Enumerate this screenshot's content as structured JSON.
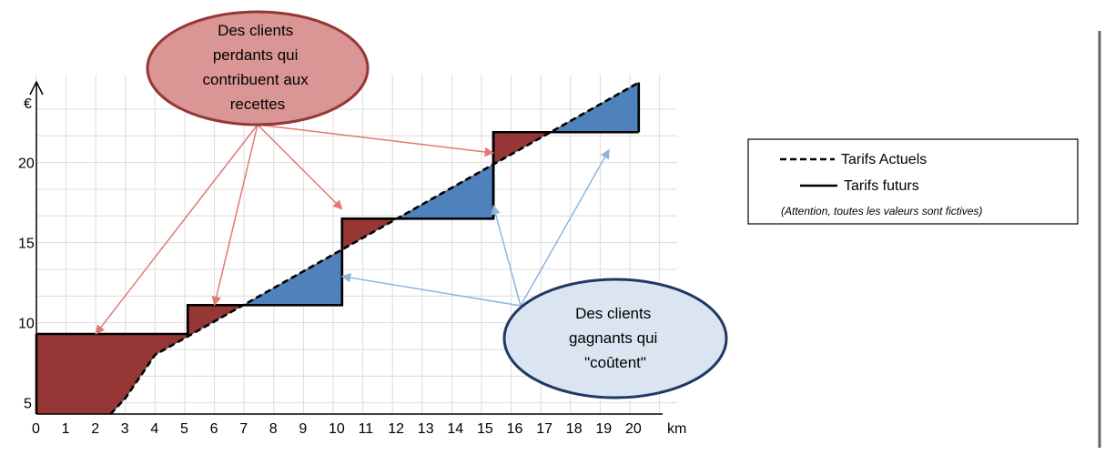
{
  "chart_data": {
    "type": "line",
    "xlabel": "km",
    "ylabel": "€",
    "xlim": [
      0,
      21.6
    ],
    "ylim": [
      4.3,
      25.5
    ],
    "grid": true,
    "x_ticks": [
      "0",
      "1",
      "2",
      "3",
      "4",
      "5",
      "6",
      "7",
      "8",
      "9",
      "10",
      "11",
      "12",
      "13",
      "14",
      "15",
      "16",
      "17",
      "18",
      "19",
      "20"
    ],
    "y_ticks": [
      5,
      10,
      15,
      20
    ],
    "series": [
      {
        "name": "Tarifs Actuels",
        "style": "dashed",
        "x": [
          2.5,
          3.0,
          4.0,
          20.3
        ],
        "y": [
          4.3,
          5.3,
          8.0,
          25.0
        ]
      },
      {
        "name": "Tarifs futurs",
        "style": "solid",
        "x": [
          0,
          5.1,
          5.1,
          10.3,
          10.3,
          15.4,
          15.4,
          20.3
        ],
        "y": [
          9.3,
          9.3,
          11.1,
          11.1,
          16.5,
          16.5,
          21.9,
          21.9
        ]
      }
    ],
    "losing_color": "#953735",
    "winning_color": "#4f81bd",
    "legend_position": "right"
  },
  "annotations": {
    "losing_bubble": {
      "lines": [
        "Des clients",
        "perdants qui",
        "contribuent aux",
        "recettes"
      ],
      "fill": "#d99694",
      "stroke": "#953735",
      "arrow_color": "#e07a74",
      "arrow_targets": [
        [
          2.0,
          9.3
        ],
        [
          6.0,
          11.1
        ],
        [
          10.3,
          17.1
        ],
        [
          15.4,
          20.6
        ]
      ]
    },
    "winning_bubble": {
      "lines": [
        "Des clients",
        "gagnants qui",
        "\"coûtent\""
      ],
      "fill": "#dbe5f1",
      "stroke": "#1f3864",
      "arrow_color": "#8fb4dd",
      "arrow_targets": [
        [
          10.3,
          12.9
        ],
        [
          15.4,
          17.3
        ],
        [
          19.3,
          20.8
        ]
      ]
    }
  },
  "legend": {
    "items": [
      {
        "label": "Tarifs Actuels",
        "style": "dashed"
      },
      {
        "label": "Tarifs futurs",
        "style": "solid"
      }
    ],
    "note": "(Attention, toutes les valeurs sont fictives)"
  }
}
